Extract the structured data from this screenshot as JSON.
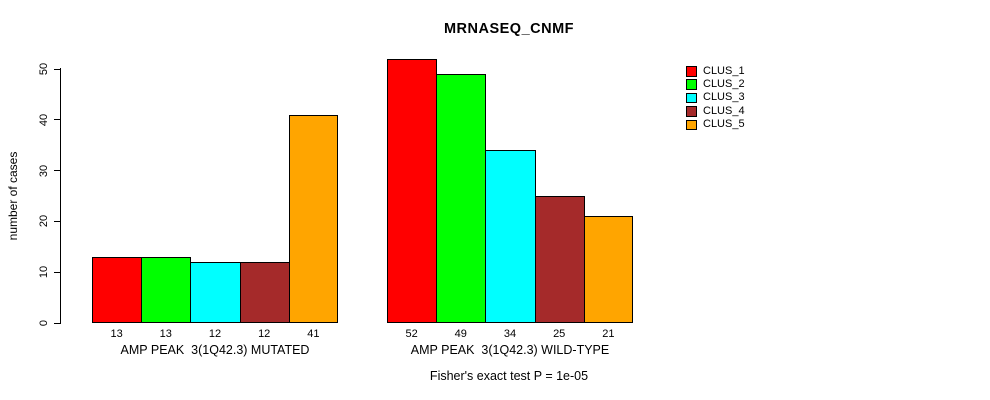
{
  "figure": {
    "background_color": "#FFFFFF",
    "text_color": "#000000"
  },
  "chart_data": {
    "type": "bar",
    "title": "MRNASEQ_CNMF",
    "xlabel": "",
    "ylabel": "number of cases",
    "ylim": [
      0,
      50
    ],
    "yticks": [
      0,
      10,
      20,
      30,
      40,
      50
    ],
    "grid": false,
    "legend_position": "top-right",
    "bar_border_color": "#000000",
    "categories": [
      "AMP PEAK  3(1Q42.3) MUTATED",
      "AMP PEAK  3(1Q42.3) WILD-TYPE"
    ],
    "series": [
      {
        "name": "CLUS_1",
        "color": "#FF0000",
        "values": [
          13,
          52
        ]
      },
      {
        "name": "CLUS_2",
        "color": "#00FF00",
        "values": [
          13,
          49
        ]
      },
      {
        "name": "CLUS_3",
        "color": "#00FFFF",
        "values": [
          12,
          34
        ]
      },
      {
        "name": "CLUS_4",
        "color": "#A52A2A",
        "values": [
          12,
          25
        ]
      },
      {
        "name": "CLUS_5",
        "color": "#FFA500",
        "values": [
          41,
          21
        ]
      }
    ],
    "bar_value_labels": [
      [
        13,
        13,
        12,
        12,
        41
      ],
      [
        52,
        49,
        34,
        25,
        21
      ]
    ],
    "annotation": "Fisher's exact test P = 1e-05"
  }
}
